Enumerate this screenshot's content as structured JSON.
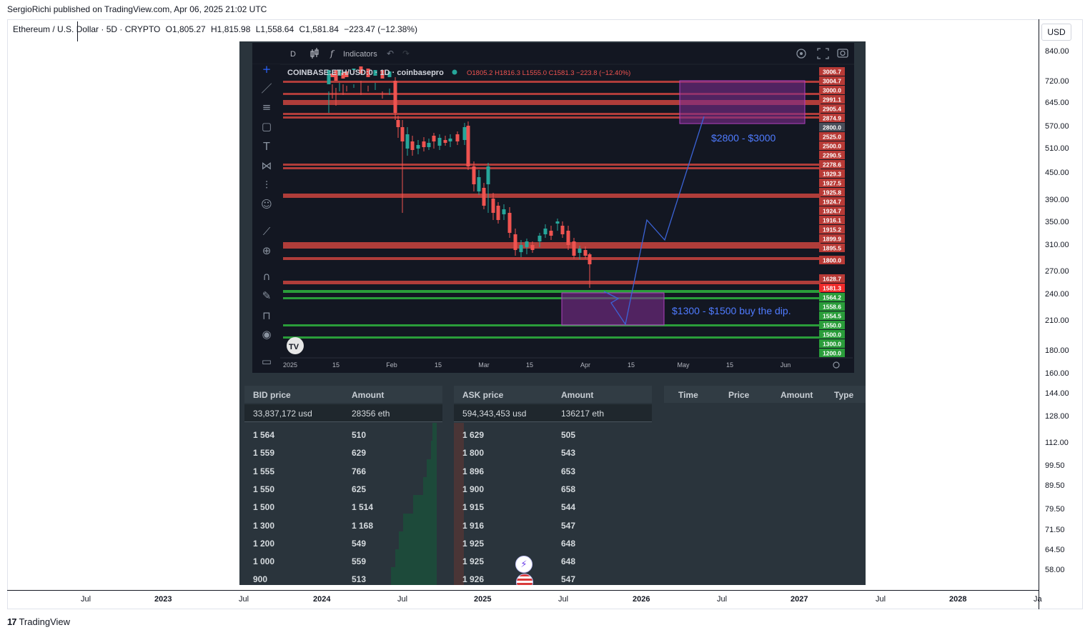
{
  "publish_line": "SergioRichi published on TradingView.com, Apr 06, 2025 21:02 UTC",
  "legend": {
    "symbol": "Ethereum / U.S. Dollar · 5D · CRYPTO",
    "open": "O1,805.27",
    "high": "H1,815.98",
    "low": "L1,558.64",
    "close": "C1,581.84",
    "change": "−223.47 (−12.38%)"
  },
  "currency_button": "USD",
  "price_axis_ticks": [
    "840.00",
    "720.00",
    "645.00",
    "570.00",
    "510.00",
    "450.00",
    "390.00",
    "350.00",
    "310.00",
    "270.00",
    "240.00",
    "210.00",
    "180.00",
    "160.00",
    "144.00",
    "128.00",
    "112.00",
    "99.50",
    "89.50",
    "79.50",
    "71.50",
    "64.50",
    "58.00"
  ],
  "time_axis_ticks": [
    {
      "label": "Jul",
      "bold": false
    },
    {
      "label": "2023",
      "bold": true
    },
    {
      "label": "Jul",
      "bold": false
    },
    {
      "label": "2024",
      "bold": true
    },
    {
      "label": "Jul",
      "bold": false
    },
    {
      "label": "2025",
      "bold": true
    },
    {
      "label": "Jul",
      "bold": false
    },
    {
      "label": "2026",
      "bold": true
    },
    {
      "label": "Jul",
      "bold": false
    },
    {
      "label": "2027",
      "bold": true
    },
    {
      "label": "Jul",
      "bold": false
    },
    {
      "label": "2028",
      "bold": true
    },
    {
      "label": "Ja",
      "bold": false
    }
  ],
  "brand": "TradingView",
  "inner_chart": {
    "toolbar": {
      "interval": "D",
      "indicators": "Indicators"
    },
    "symbol_line": "COINBASE:ETH/USD:0 · 1D · coinbasepro",
    "ohlc": "O1805.2 H1816.3 L1555.0 C1581.3 −223.8 (−12.40%)",
    "zone_upper": "$2800 - $3000",
    "zone_lower": "$1300 - $1500 buy the dip.",
    "x_labels": [
      "2025",
      "15",
      "Feb",
      "15",
      "Mar",
      "15",
      "Apr",
      "15",
      "May",
      "15",
      "Jun"
    ],
    "resistance_labels": [
      "3006.7",
      "3004.7",
      "3000.0",
      "2991.1",
      "2905.4",
      "2874.9"
    ],
    "neutral_label": "2800.0",
    "mid_labels": [
      "2525.0",
      "2500.0",
      "2290.5",
      "2278.6",
      "1929.3",
      "1927.5",
      "1925.8",
      "1924.7",
      "1924.7",
      "1916.1",
      "1915.2",
      "1899.9",
      "1895.5"
    ],
    "level_1800": "1800.0",
    "level_1628": "1628.7",
    "last_price": "1581.3",
    "support_labels": [
      "1564.2",
      "1558.6",
      "1554.5",
      "1550.0",
      "1500.0",
      "1300.0",
      "1200.0"
    ],
    "colors": {
      "resistance": "#c2413d",
      "support": "#2a9d3a",
      "zone": "#7b2c8c",
      "annotation": "#3b63d6"
    }
  },
  "order_book": {
    "bid": {
      "header_price": "BID price",
      "header_amount": "Amount",
      "total_usd": "33,837,172 usd",
      "total_eth": "28356 eth",
      "rows": [
        {
          "price": "1 564",
          "amount": "510",
          "depth": 0.02
        },
        {
          "price": "1 559",
          "amount": "629",
          "depth": 0.03
        },
        {
          "price": "1 555",
          "amount": "766",
          "depth": 0.05
        },
        {
          "price": "1 550",
          "amount": "625",
          "depth": 0.07
        },
        {
          "price": "1 500",
          "amount": "1 514",
          "depth": 0.12
        },
        {
          "price": "1 300",
          "amount": "1 168",
          "depth": 0.17
        },
        {
          "price": "1 200",
          "amount": "549",
          "depth": 0.19
        },
        {
          "price": "1 000",
          "amount": "559",
          "depth": 0.21
        },
        {
          "price": "900",
          "amount": "513",
          "depth": 0.23
        }
      ]
    },
    "ask": {
      "header_price": "ASK price",
      "header_amount": "Amount",
      "total_usd": "594,343,453 usd",
      "total_eth": "136217 eth",
      "rows": [
        {
          "price": "1 629",
          "amount": "505"
        },
        {
          "price": "1 800",
          "amount": "543"
        },
        {
          "price": "1 896",
          "amount": "653"
        },
        {
          "price": "1 900",
          "amount": "658"
        },
        {
          "price": "1 915",
          "amount": "544"
        },
        {
          "price": "1 916",
          "amount": "547"
        },
        {
          "price": "1 925",
          "amount": "648"
        },
        {
          "price": "1 925",
          "amount": "648"
        },
        {
          "price": "1 926",
          "amount": "547"
        }
      ]
    },
    "trades_headers": [
      "Time",
      "Price",
      "Amount",
      "Type"
    ]
  }
}
